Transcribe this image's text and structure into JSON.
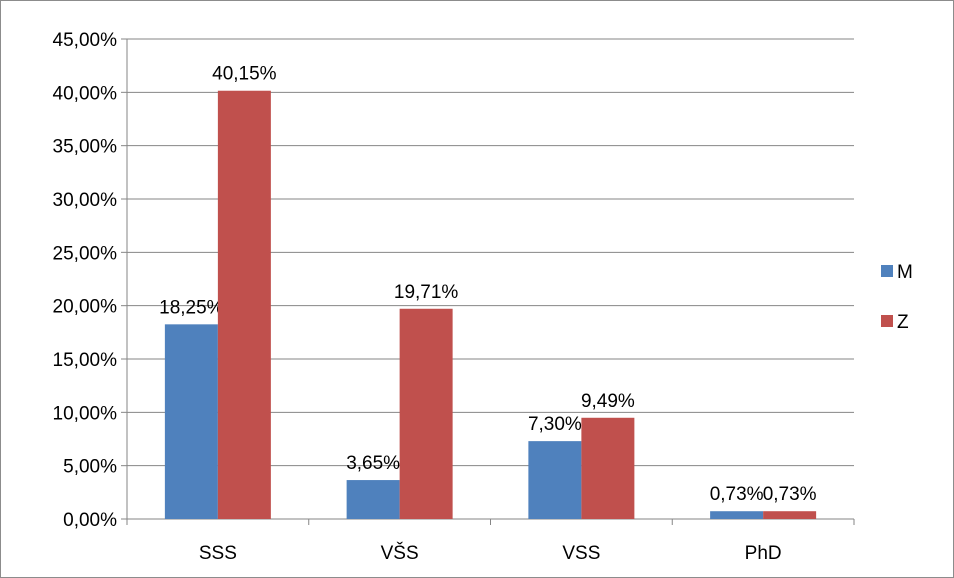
{
  "chart_data": {
    "type": "bar",
    "categories": [
      "SSS",
      "VŠS",
      "VSS",
      "PhD"
    ],
    "series": [
      {
        "name": "M",
        "color": "#4f81bd",
        "values": [
          18.25,
          3.65,
          7.3,
          0.73
        ],
        "labels": [
          "18,25%",
          "3,65%",
          "7,30%",
          "0,73%"
        ]
      },
      {
        "name": "Z",
        "color": "#c0504d",
        "values": [
          40.15,
          19.71,
          9.49,
          0.73
        ],
        "labels": [
          "40,15%",
          "19,71%",
          "9,49%",
          "0,73%"
        ]
      }
    ],
    "ylim": [
      0,
      45
    ],
    "ytick_values": [
      0,
      5,
      10,
      15,
      20,
      25,
      30,
      35,
      40,
      45
    ],
    "ytick_labels": [
      "0,00%",
      "5,00%",
      "10,00%",
      "15,00%",
      "20,00%",
      "25,00%",
      "30,00%",
      "35,00%",
      "40,00%",
      "45,00%"
    ],
    "grid": true,
    "legend_position": "right",
    "title": "",
    "xlabel": "",
    "ylabel": ""
  }
}
